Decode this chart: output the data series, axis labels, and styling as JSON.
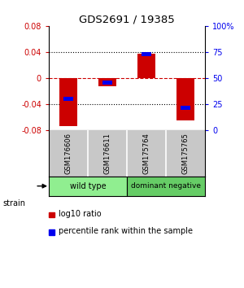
{
  "title": "GDS2691 / 19385",
  "samples": [
    "GSM176606",
    "GSM176611",
    "GSM175764",
    "GSM175765"
  ],
  "log10_ratios": [
    -0.073,
    -0.012,
    0.038,
    -0.065
  ],
  "percentile_ranks": [
    30,
    46,
    73,
    22
  ],
  "ylim": [
    -0.08,
    0.08
  ],
  "yticks_left": [
    -0.08,
    -0.04,
    0,
    0.04,
    0.08
  ],
  "yticks_right": [
    0,
    25,
    50,
    75,
    100
  ],
  "bar_width": 0.45,
  "red_color": "#CC0000",
  "blue_color": "#0000EE",
  "background_color": "#ffffff",
  "legend_red": "log10 ratio",
  "legend_blue": "percentile rank within the sample",
  "strain_label": "strain",
  "group_label_wt": "wild type",
  "group_label_dn": "dominant negative",
  "group_color_wt": "#90EE90",
  "group_color_dn": "#66CC66",
  "sample_bg": "#C8C8C8",
  "dotted_color": "black",
  "zero_line_color": "#CC0000"
}
